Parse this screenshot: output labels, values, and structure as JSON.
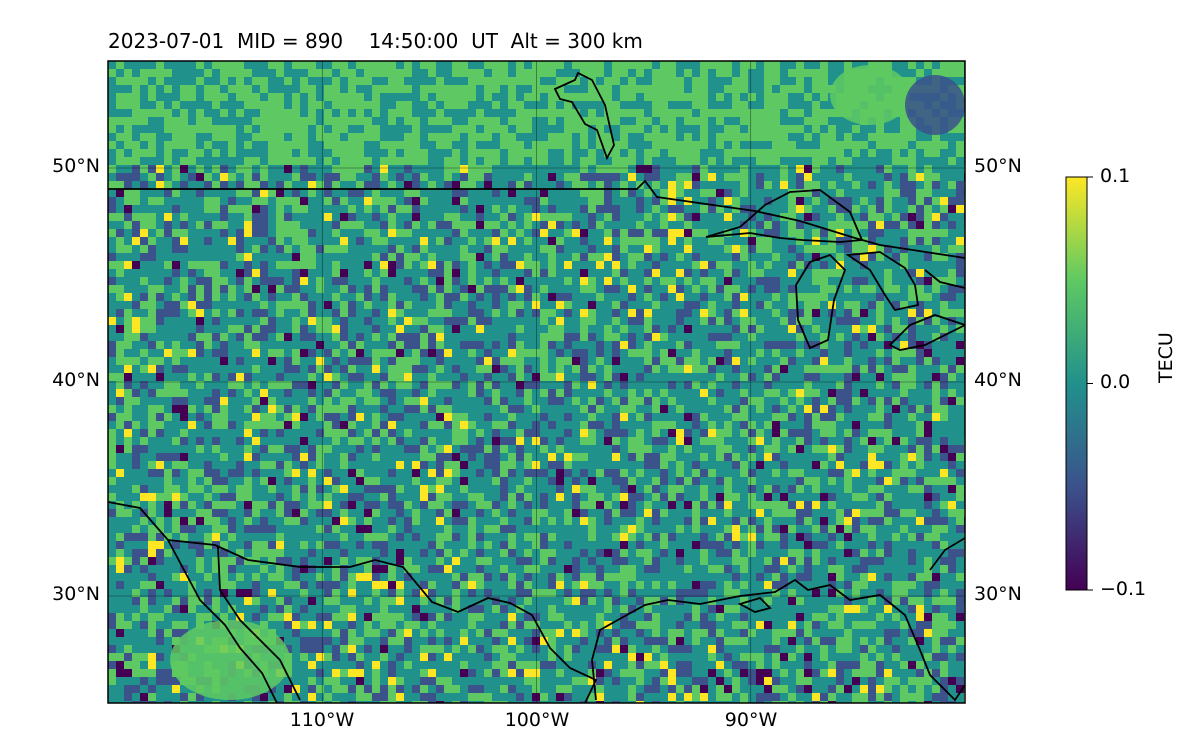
{
  "title": "2023-07-01  MID = 890    14:50:00  UT  Alt = 300 km",
  "map": {
    "lon_range": [
      -120,
      -80
    ],
    "lat_range": [
      25,
      55
    ],
    "lat_ticks": [
      {
        "value": 50,
        "label": "50°N"
      },
      {
        "value": 40,
        "label": "40°N"
      },
      {
        "value": 30,
        "label": "30°N"
      }
    ],
    "lon_ticks": [
      {
        "value": -110,
        "label": "110°W"
      },
      {
        "value": -100,
        "label": "100°W"
      },
      {
        "value": -90,
        "label": "90°W"
      }
    ],
    "gridlines": true,
    "colormap": "viridis"
  },
  "colorbar": {
    "label": "TECU",
    "min": -0.1,
    "max": 0.1,
    "ticks": [
      {
        "value": 0.1,
        "label": "0.1"
      },
      {
        "value": 0.0,
        "label": "0.0"
      },
      {
        "value": -0.1,
        "label": "−0.1"
      }
    ],
    "colors": [
      "#440154",
      "#3b528b",
      "#21918c",
      "#5ec962",
      "#fde725"
    ]
  }
}
